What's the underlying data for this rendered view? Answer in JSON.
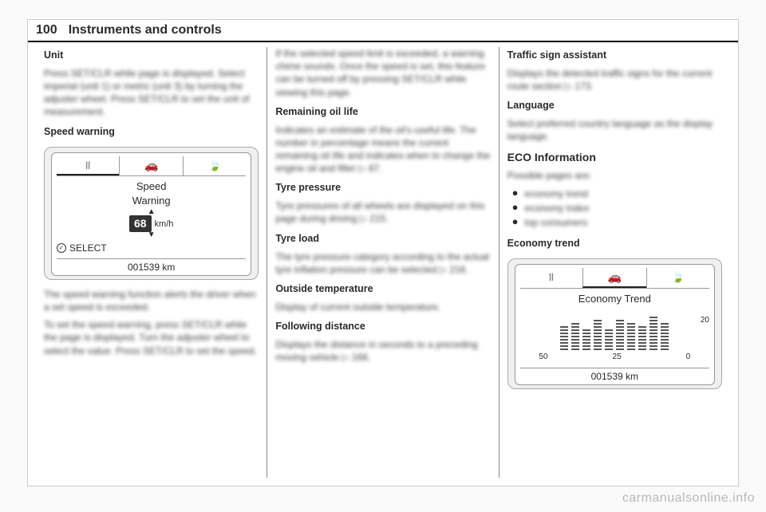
{
  "header": {
    "page_number": "100",
    "chapter": "Instruments and controls"
  },
  "watermark": "carmanualsonline.info",
  "col1": {
    "unit": {
      "title": "Unit",
      "text": "Press SET/CLR while page is displayed. Select imperial (unit 1) or metric (unit 3) by turning the adjuster wheel. Press SET/CLR to set the unit of measurement."
    },
    "speed_warning": {
      "title": "Speed warning",
      "figure": {
        "tabs": {
          "lane": "⧘⧘",
          "car": "🚗",
          "leaf": "🍃"
        },
        "label_line1": "Speed",
        "label_line2": "Warning",
        "value": "68",
        "unit": "km/h",
        "select_label": "SELECT",
        "odometer": "001539 km"
      },
      "p1": "The speed warning function alerts the driver when a set speed is exceeded.",
      "p2": "To set the speed warning, press SET/CLR while the page is displayed. Turn the adjuster wheel to select the value. Press SET/CLR to set the speed."
    }
  },
  "col2": {
    "p_exceeded": "If the selected speed limit is exceeded, a warning chime sounds. Once the speed is set, this feature can be turned off by pressing SET/CLR while viewing this page.",
    "oil": {
      "title": "Remaining oil life",
      "text": "Indicates an estimate of the oil's useful life. The number in percentage means the current remaining oil life and indicates when to change the engine oil and filter ▷ 87."
    },
    "tyre_pressure": {
      "title": "Tyre pressure",
      "text": "Tyre pressures of all wheels are displayed on this page during driving ▷ 215."
    },
    "tyre_load": {
      "title": "Tyre load",
      "text": "The tyre pressure category according to the actual tyre inflation pressure can be selected ▷ 216."
    },
    "outside": {
      "title": "Outside temperature",
      "text": "Display of current outside temperature."
    },
    "following": {
      "title": "Following distance",
      "text": "Displays the distance in seconds to a preceding moving vehicle ▷ 168."
    }
  },
  "col3": {
    "traffic": {
      "title": "Traffic sign assistant",
      "text": "Displays the detected traffic signs for the current route section ▷ 173."
    },
    "language": {
      "title": "Language",
      "text": "Select preferred country language as the display language."
    },
    "eco": {
      "title": "ECO Information",
      "intro": "Possible pages are:",
      "items": [
        "economy trend",
        "economy index",
        "top consumers"
      ]
    },
    "economy_trend": {
      "title": "Economy trend",
      "figure": {
        "tabs": {
          "lane": "⧘⧘",
          "car": "🚗",
          "leaf": "🍃"
        },
        "heading": "Economy Trend",
        "y_label": "20",
        "x_left": "50",
        "x_mid": "25",
        "x_right": "0",
        "bars": [
          32,
          36,
          28,
          40,
          26,
          38,
          34,
          30,
          42,
          36
        ],
        "odometer": "001539 km"
      }
    }
  }
}
